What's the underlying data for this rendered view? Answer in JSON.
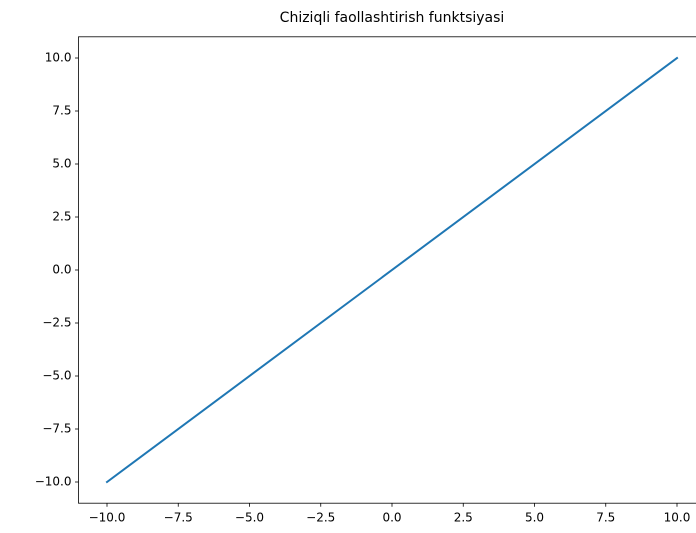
{
  "chart_data": {
    "type": "line",
    "title": "Chiziqli faollashtirish funktsiyasi",
    "x": [
      -10,
      10
    ],
    "series": [
      {
        "color": "#1f77b4",
        "values": [
          -10,
          10
        ]
      }
    ],
    "xlim": [
      -11,
      11
    ],
    "ylim": [
      -11,
      11
    ],
    "xticks": [
      {
        "value": -10,
        "label": "−10.0"
      },
      {
        "value": -7.5,
        "label": "−7.5"
      },
      {
        "value": -5,
        "label": "−5.0"
      },
      {
        "value": -2.5,
        "label": "−2.5"
      },
      {
        "value": 0,
        "label": "0.0"
      },
      2.5,
      {
        "value": 5,
        "label": "5.0"
      },
      7.5,
      {
        "value": 10,
        "label": "10.0"
      }
    ],
    "yticks": [
      {
        "value": -10,
        "label": "−10.0"
      },
      {
        "value": -7.5,
        "label": "−7.5"
      },
      {
        "value": -5,
        "label": "−5.0"
      },
      {
        "value": -2.5,
        "label": "−2.5"
      },
      {
        "value": 0,
        "label": "0.0"
      },
      2.5,
      {
        "value": 5,
        "label": "5.0"
      },
      7.5,
      {
        "value": 10,
        "label": "10.0"
      }
    ],
    "grid": false
  }
}
